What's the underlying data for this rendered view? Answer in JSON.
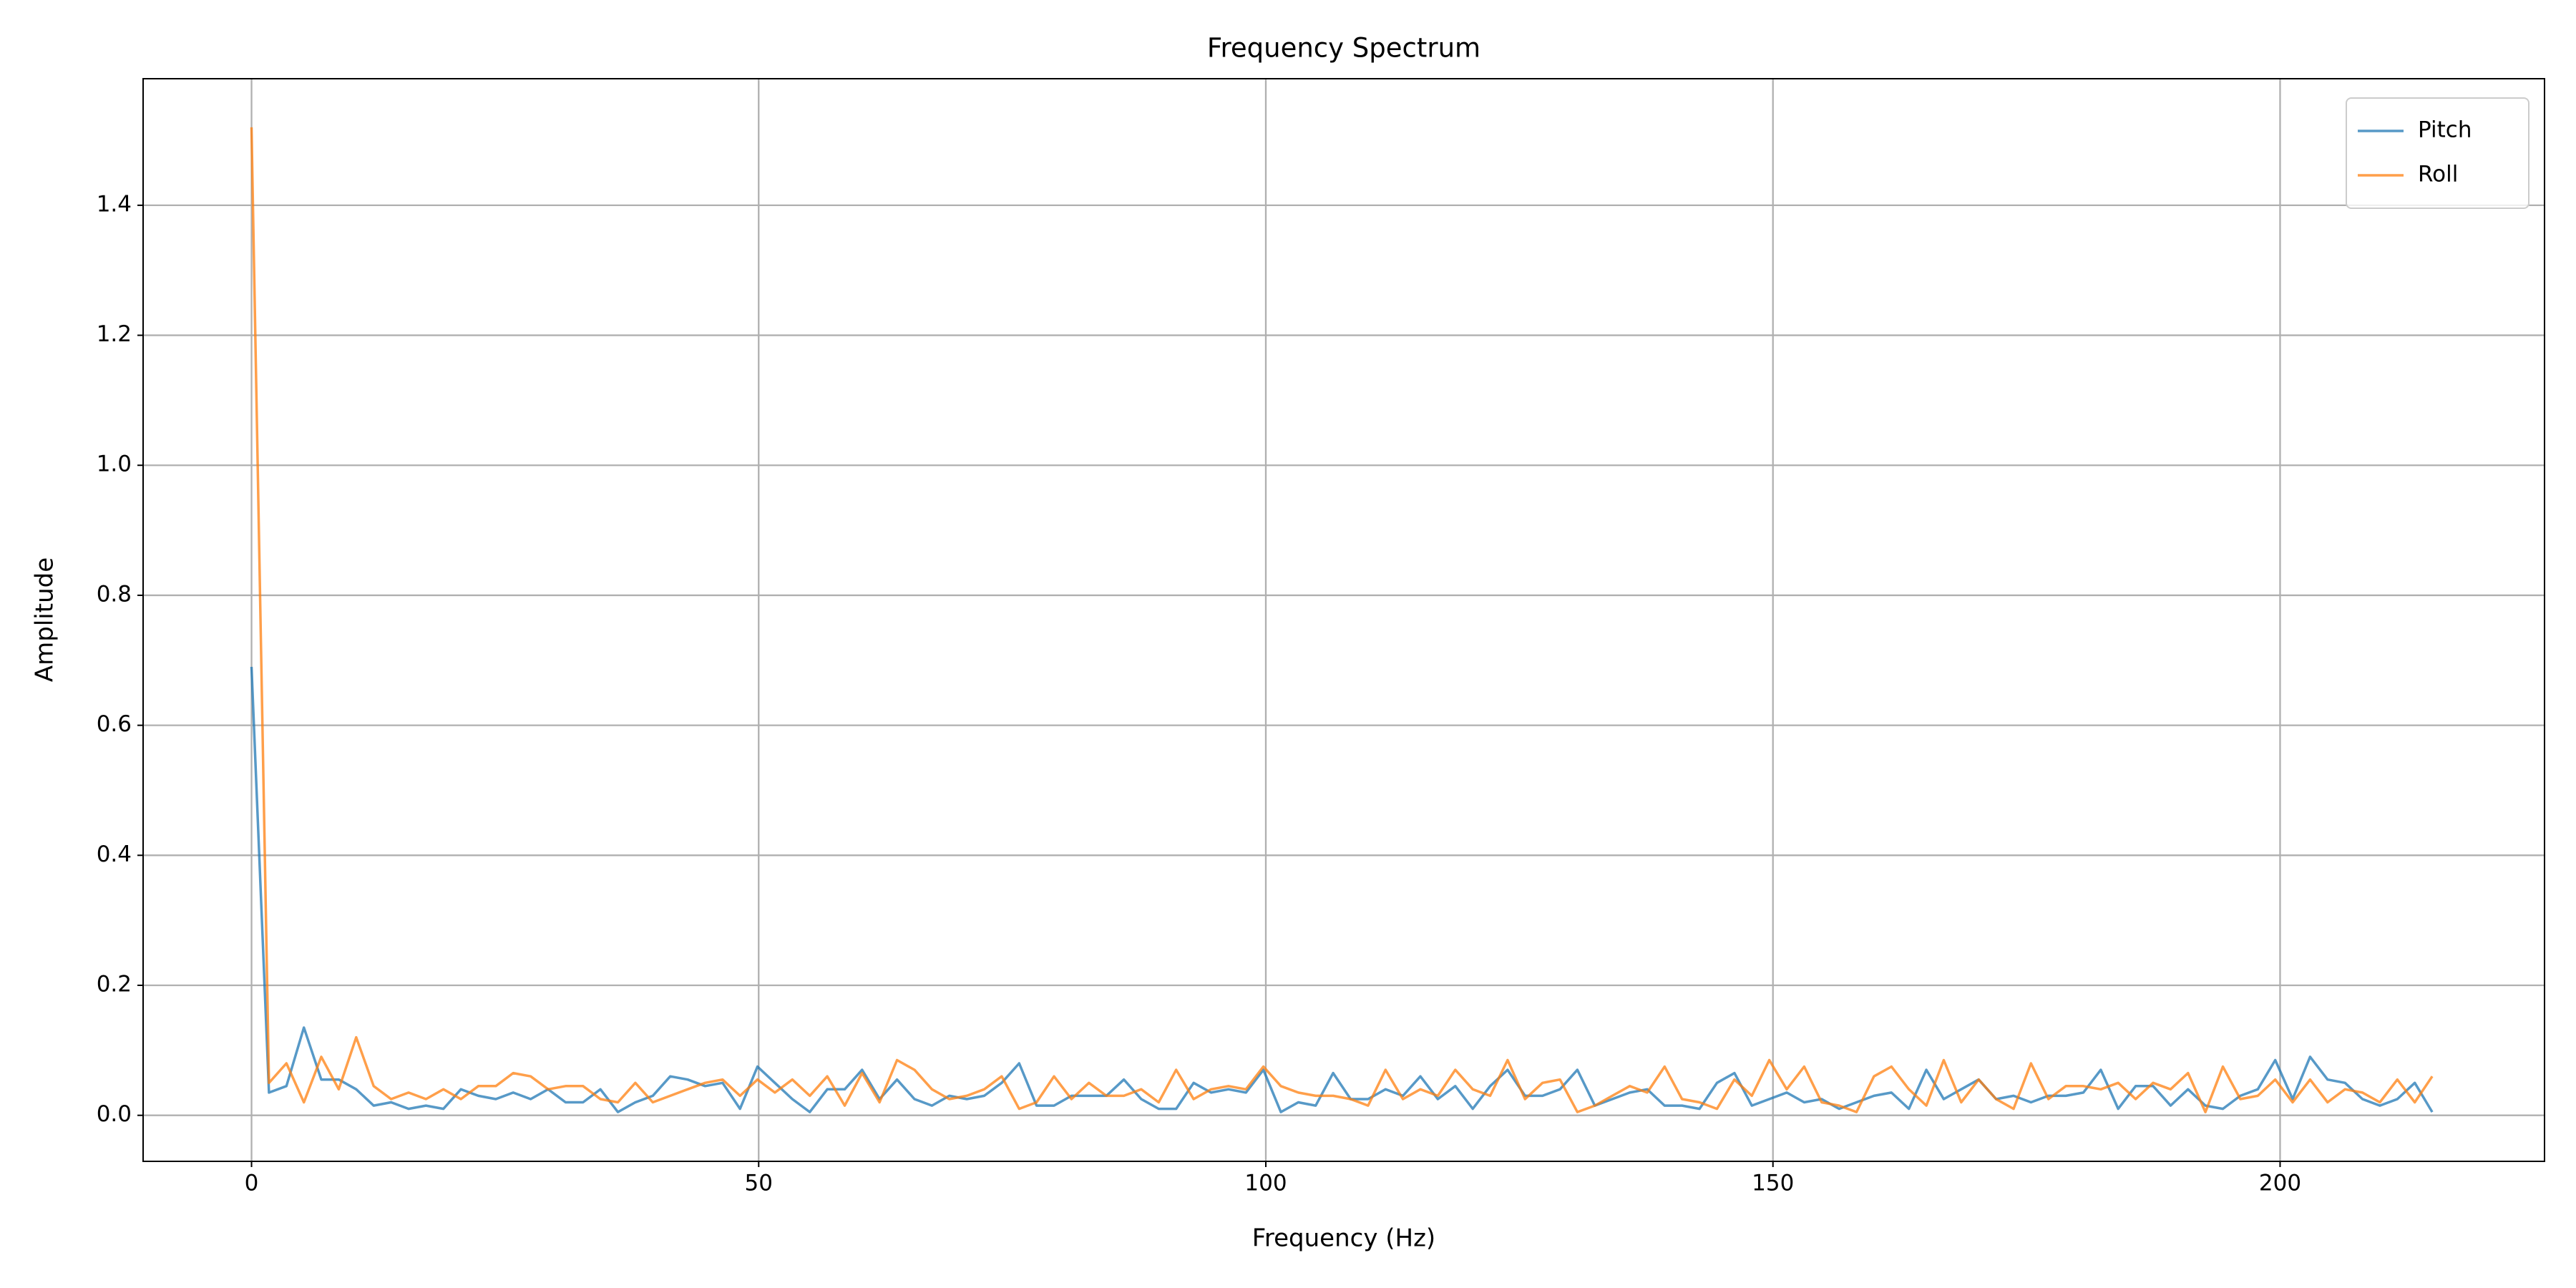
{
  "chart_data": {
    "type": "line",
    "title": "Frequency Spectrum",
    "x_label": "Frequency (Hz)",
    "y_label": "Amplitude",
    "x": [
      0,
      1.72,
      3.44,
      5.16,
      6.88,
      8.6,
      10.32,
      12.04,
      13.76,
      15.48,
      17.2,
      18.92,
      20.64,
      22.36,
      24.08,
      25.8,
      27.52,
      29.24,
      30.96,
      32.68,
      34.4,
      36.12,
      37.84,
      39.56,
      41.28,
      43,
      44.72,
      46.44,
      48.16,
      49.88,
      51.6,
      53.32,
      55.04,
      56.76,
      58.48,
      60.2,
      61.92,
      63.64,
      65.36,
      67.08,
      68.8,
      70.52,
      72.24,
      73.96,
      75.68,
      77.4,
      79.12,
      80.84,
      82.56,
      84.28,
      86,
      87.72,
      89.44,
      91.16,
      92.88,
      94.6,
      96.32,
      98.04,
      99.76,
      101.48,
      103.2,
      104.92,
      106.64,
      108.36,
      110.08,
      111.8,
      113.52,
      115.24,
      116.96,
      118.68,
      120.4,
      122.12,
      123.84,
      125.56,
      127.28,
      129,
      130.72,
      132.44,
      134.16,
      135.88,
      137.6,
      139.32,
      141.04,
      142.76,
      144.48,
      146.2,
      147.92,
      149.64,
      151.36,
      153.08,
      154.8,
      156.52,
      158.24,
      159.96,
      161.68,
      163.4,
      165.12,
      166.84,
      168.56,
      170.28,
      172,
      173.72,
      175.44,
      177.16,
      178.88,
      180.6,
      182.32,
      184.04,
      185.76,
      187.48,
      189.2,
      190.92,
      192.64,
      194.36,
      196.08,
      197.8,
      199.52,
      201.24,
      202.96,
      204.68,
      206.4,
      208.12,
      209.84,
      211.56,
      213.28,
      215
    ],
    "series": [
      {
        "name": "Pitch",
        "color": "#1f77b4",
        "values": [
          0.69,
          0.035,
          0.045,
          0.135,
          0.055,
          0.055,
          0.04,
          0.015,
          0.02,
          0.01,
          0.015,
          0.01,
          0.04,
          0.03,
          0.025,
          0.035,
          0.025,
          0.04,
          0.02,
          0.02,
          0.04,
          0.005,
          0.02,
          0.03,
          0.06,
          0.055,
          0.045,
          0.05,
          0.01,
          0.075,
          0.05,
          0.025,
          0.005,
          0.04,
          0.04,
          0.07,
          0.025,
          0.055,
          0.025,
          0.015,
          0.03,
          0.025,
          0.03,
          0.05,
          0.08,
          0.015,
          0.015,
          0.03,
          0.03,
          0.03,
          0.055,
          0.025,
          0.01,
          0.01,
          0.05,
          0.035,
          0.04,
          0.035,
          0.07,
          0.005,
          0.02,
          0.015,
          0.065,
          0.025,
          0.025,
          0.04,
          0.03,
          0.06,
          0.025,
          0.045,
          0.01,
          0.045,
          0.07,
          0.03,
          0.03,
          0.04,
          0.07,
          0.015,
          0.025,
          0.035,
          0.04,
          0.015,
          0.015,
          0.01,
          0.05,
          0.065,
          0.015,
          0.025,
          0.035,
          0.02,
          0.025,
          0.01,
          0.02,
          0.03,
          0.035,
          0.01,
          0.07,
          0.025,
          0.04,
          0.055,
          0.025,
          0.03,
          0.02,
          0.03,
          0.03,
          0.035,
          0.07,
          0.01,
          0.045,
          0.045,
          0.015,
          0.04,
          0.015,
          0.01,
          0.03,
          0.04,
          0.085,
          0.025,
          0.09,
          0.055,
          0.05,
          0.025,
          0.015,
          0.025,
          0.05,
          0.005
        ]
      },
      {
        "name": "Roll",
        "color": "#ff7f0e",
        "values": [
          1.52,
          0.05,
          0.08,
          0.02,
          0.09,
          0.04,
          0.12,
          0.045,
          0.025,
          0.035,
          0.025,
          0.04,
          0.025,
          0.045,
          0.045,
          0.065,
          0.06,
          0.04,
          0.045,
          0.045,
          0.025,
          0.02,
          0.05,
          0.02,
          0.03,
          0.04,
          0.05,
          0.055,
          0.03,
          0.055,
          0.035,
          0.055,
          0.03,
          0.06,
          0.015,
          0.065,
          0.02,
          0.085,
          0.07,
          0.04,
          0.025,
          0.03,
          0.04,
          0.06,
          0.01,
          0.02,
          0.06,
          0.025,
          0.05,
          0.03,
          0.03,
          0.04,
          0.02,
          0.07,
          0.025,
          0.04,
          0.045,
          0.04,
          0.075,
          0.045,
          0.035,
          0.03,
          0.03,
          0.025,
          0.015,
          0.07,
          0.025,
          0.04,
          0.03,
          0.07,
          0.04,
          0.03,
          0.085,
          0.025,
          0.05,
          0.055,
          0.005,
          0.015,
          0.03,
          0.045,
          0.035,
          0.075,
          0.025,
          0.02,
          0.01,
          0.055,
          0.03,
          0.085,
          0.04,
          0.075,
          0.02,
          0.015,
          0.005,
          0.06,
          0.075,
          0.04,
          0.015,
          0.085,
          0.02,
          0.055,
          0.025,
          0.01,
          0.08,
          0.025,
          0.045,
          0.045,
          0.04,
          0.05,
          0.025,
          0.05,
          0.04,
          0.065,
          0.005,
          0.075,
          0.025,
          0.03,
          0.055,
          0.02,
          0.055,
          0.02,
          0.04,
          0.035,
          0.02,
          0.055,
          0.02,
          0.06
        ]
      }
    ],
    "xlim": [
      -10.69,
      226.07
    ],
    "ylim": [
      -0.0708,
      1.5947
    ],
    "xticks": [
      0,
      50,
      100,
      150,
      200
    ],
    "yticks": [
      {
        "value": 0,
        "label": "0.0"
      },
      0.2,
      0.4,
      0.6,
      0.8,
      {
        "value": 1,
        "label": "1.0"
      },
      1.2,
      1.4
    ],
    "grid": true,
    "legend": "upper right"
  }
}
